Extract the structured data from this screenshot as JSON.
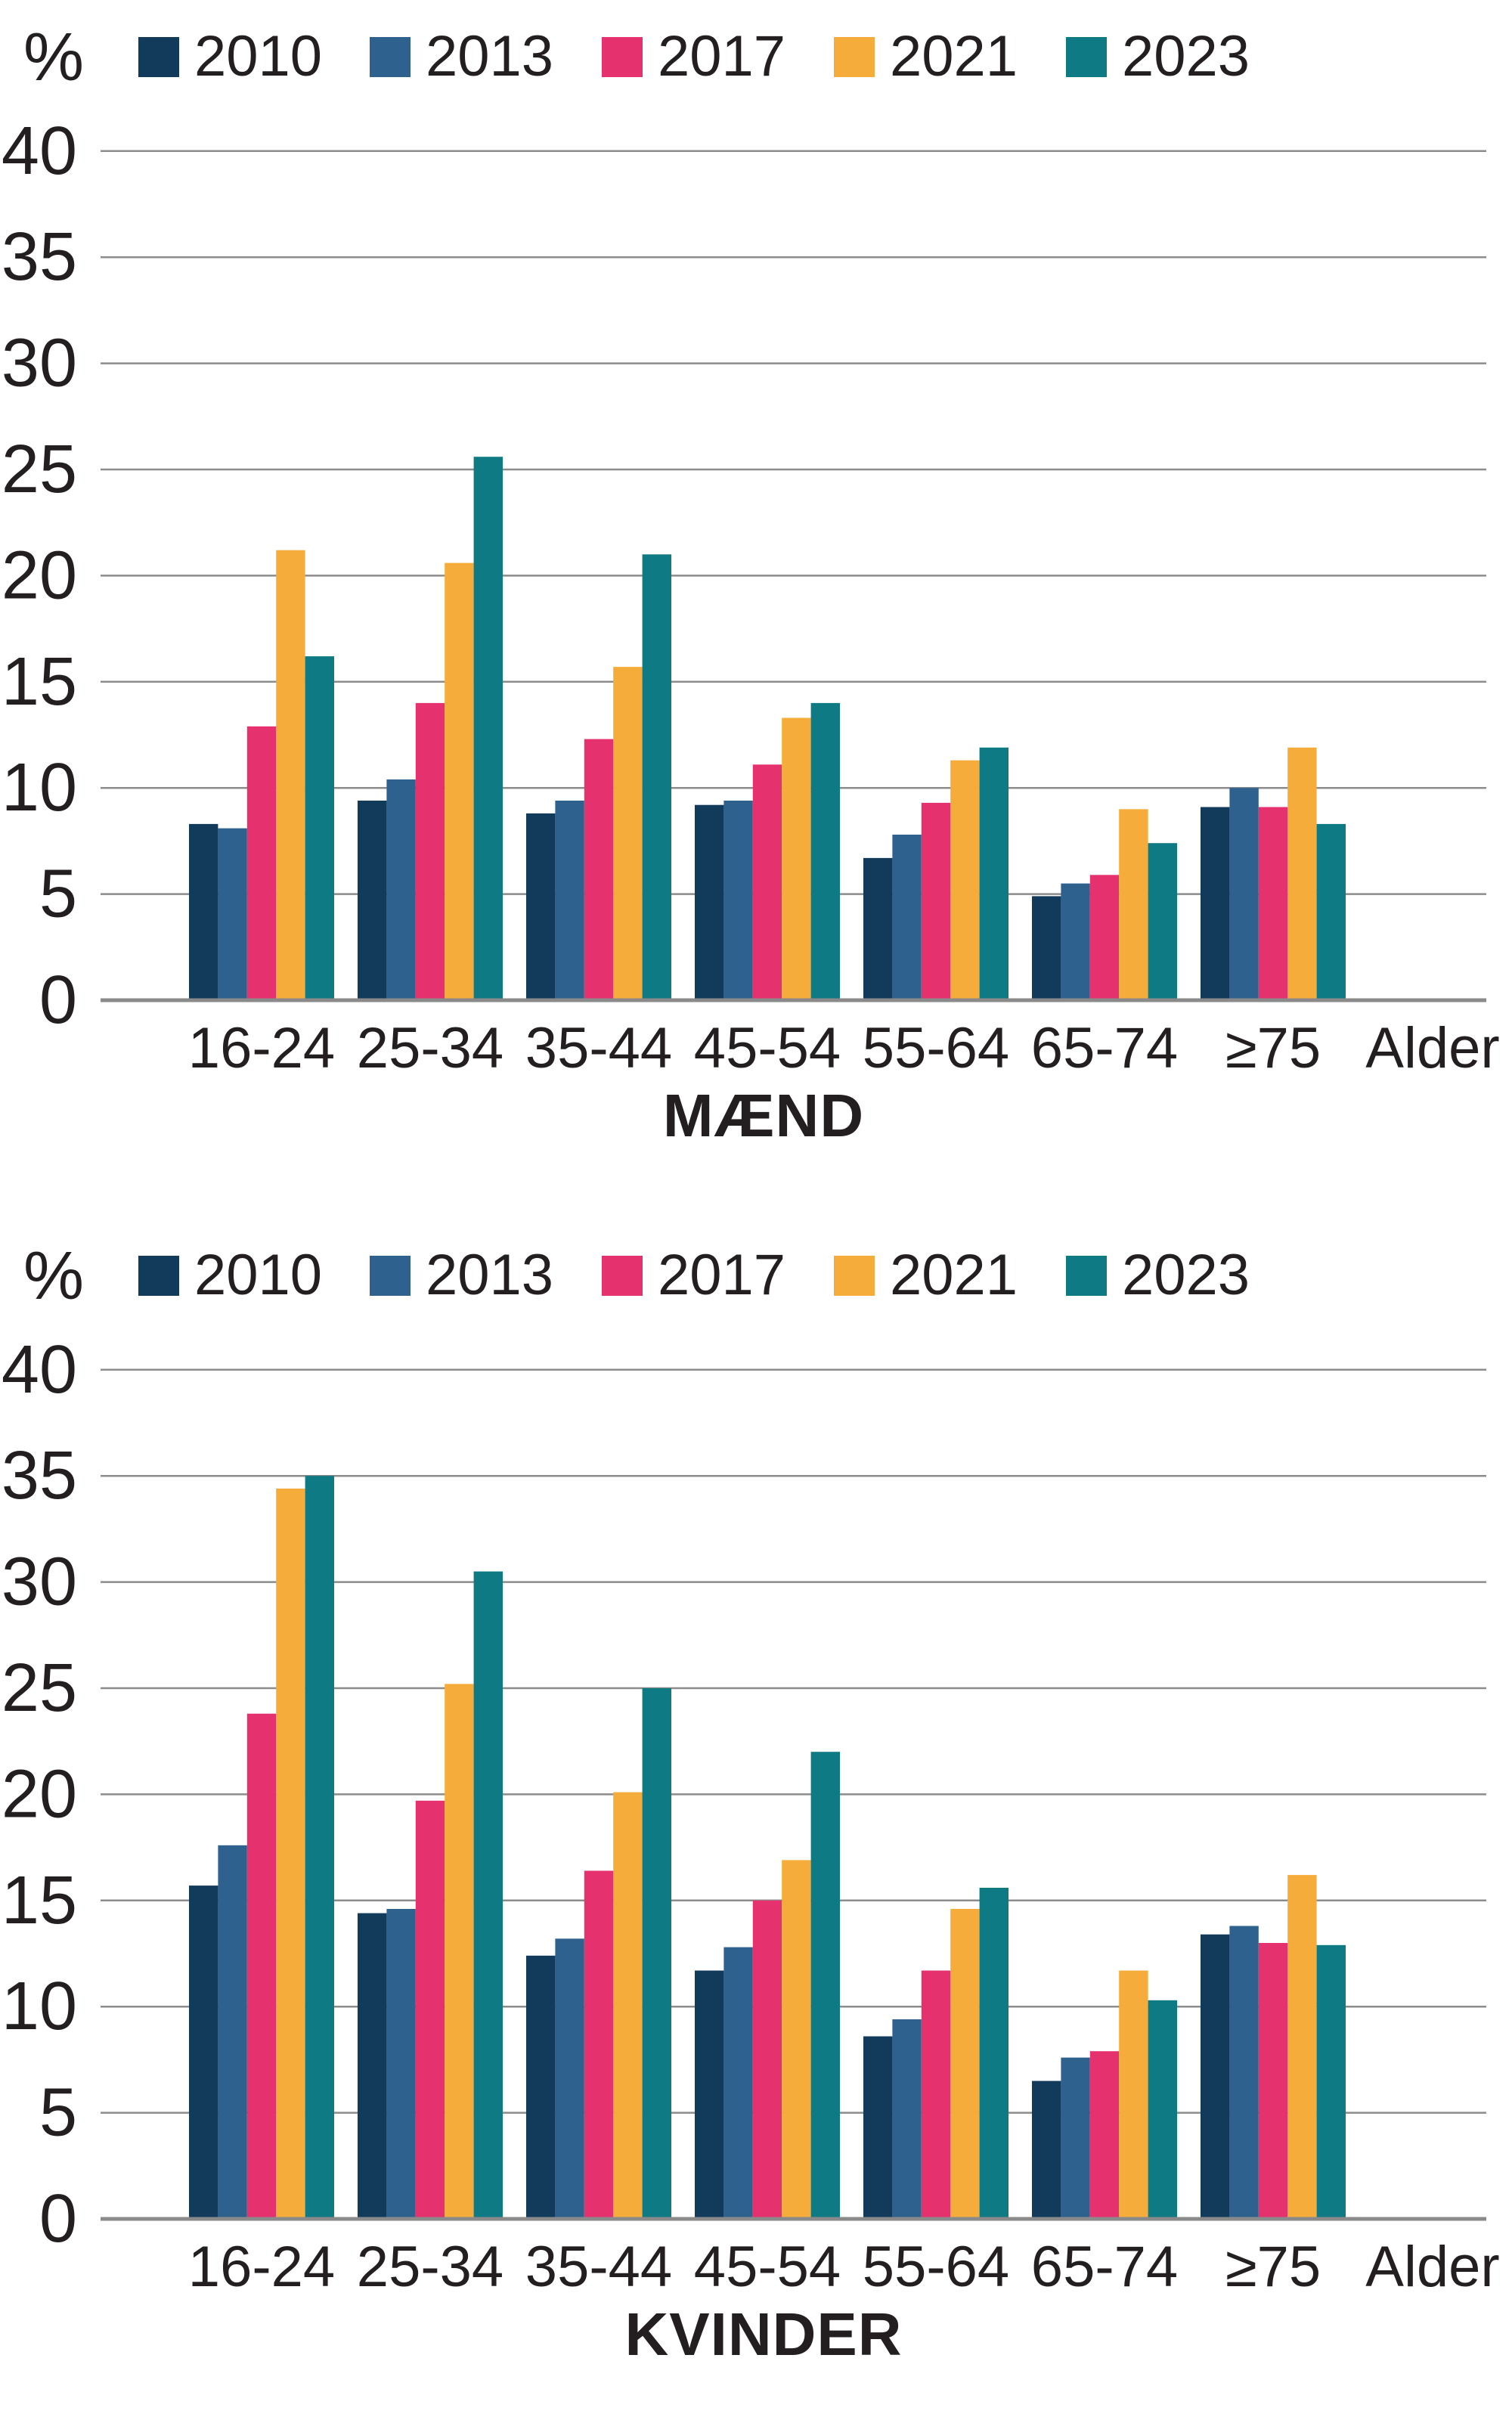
{
  "colors": {
    "grid": "#8c8c8c",
    "axis": "#8a8a8a",
    "text": "#231f20",
    "background": "#ffffff"
  },
  "chart_data": [
    {
      "type": "bar",
      "title": "MÆND",
      "y_unit": "%",
      "x_axis_label": "Alder",
      "ylim": [
        0,
        40
      ],
      "ytick_step": 5,
      "grid": true,
      "legend_position": "top",
      "categories": [
        "16-24",
        "25-34",
        "35-44",
        "45-54",
        "55-64",
        "65-74",
        "≥75"
      ],
      "series": [
        {
          "name": "2010",
          "color": "#123a5b",
          "values": [
            8.3,
            9.4,
            8.8,
            9.2,
            6.7,
            4.9,
            9.1
          ]
        },
        {
          "name": "2013",
          "color": "#2e618e",
          "values": [
            8.1,
            10.4,
            9.4,
            9.4,
            7.8,
            5.5,
            10.0
          ]
        },
        {
          "name": "2017",
          "color": "#e5326f",
          "values": [
            12.9,
            14.0,
            12.3,
            11.1,
            9.3,
            5.9,
            9.1
          ]
        },
        {
          "name": "2021",
          "color": "#f6ac3a",
          "values": [
            21.2,
            20.6,
            15.7,
            13.3,
            11.3,
            9.0,
            11.9
          ]
        },
        {
          "name": "2023",
          "color": "#0e7a83",
          "values": [
            16.2,
            25.6,
            21.0,
            14.0,
            11.9,
            7.4,
            8.3
          ]
        }
      ]
    },
    {
      "type": "bar",
      "title": "KVINDER",
      "y_unit": "%",
      "x_axis_label": "Alder",
      "ylim": [
        0,
        40
      ],
      "ytick_step": 5,
      "grid": true,
      "legend_position": "top",
      "categories": [
        "16-24",
        "25-34",
        "35-44",
        "45-54",
        "55-64",
        "65-74",
        "≥75"
      ],
      "series": [
        {
          "name": "2010",
          "color": "#123a5b",
          "values": [
            15.7,
            14.4,
            12.4,
            11.7,
            8.6,
            6.5,
            13.4
          ]
        },
        {
          "name": "2013",
          "color": "#2e618e",
          "values": [
            17.6,
            14.6,
            13.2,
            12.8,
            9.4,
            7.6,
            13.8
          ]
        },
        {
          "name": "2017",
          "color": "#e5326f",
          "values": [
            23.8,
            19.7,
            16.4,
            15.0,
            11.7,
            7.9,
            13.0
          ]
        },
        {
          "name": "2021",
          "color": "#f6ac3a",
          "values": [
            34.4,
            25.2,
            20.1,
            16.9,
            14.6,
            11.7,
            16.2
          ]
        },
        {
          "name": "2023",
          "color": "#0e7a83",
          "values": [
            35.0,
            30.5,
            25.0,
            22.0,
            15.6,
            10.3,
            12.9
          ]
        }
      ]
    }
  ]
}
